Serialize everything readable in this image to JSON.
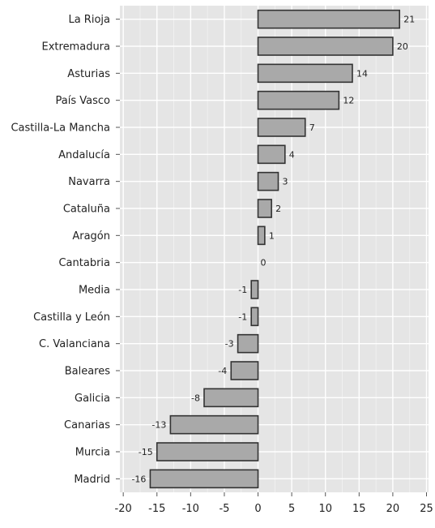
{
  "chart_data": {
    "type": "bar",
    "orientation": "horizontal",
    "categories": [
      "La Rioja",
      "Extremadura",
      "Asturias",
      "País Vasco",
      "Castilla-La Mancha",
      "Andalucía",
      "Navarra",
      "Cataluña",
      "Aragón",
      "Cantabria",
      "Media",
      "Castilla y León",
      "C. Valanciana",
      "Baleares",
      "Galicia",
      "Canarias",
      "Murcia",
      "Madrid"
    ],
    "values": [
      21,
      20,
      14,
      12,
      7,
      4,
      3,
      2,
      1,
      0,
      -1,
      -1,
      -3,
      -4,
      -8,
      -13,
      -15,
      -16
    ],
    "data_labels": [
      "21",
      "20",
      "14",
      "12",
      "7",
      "4",
      "3",
      "2",
      "1",
      "0",
      "-1",
      "-1",
      "-3",
      "-4",
      "-8",
      "-13",
      "-15",
      "-16"
    ],
    "x_ticks": [
      "-20",
      "-15",
      "-10",
      "-5",
      "0",
      "5",
      "10",
      "15",
      "20",
      "25"
    ],
    "x_tick_values": [
      -20,
      -15,
      -10,
      -5,
      0,
      5,
      10,
      15,
      20,
      25
    ],
    "xlim": [
      -20.5,
      25.3
    ],
    "title": "",
    "xlabel": "",
    "ylabel": "",
    "grid": true,
    "legend": "none",
    "colors": {
      "panel_background": "#e5e5e5",
      "bar_fill": "#a9a9a9",
      "bar_stroke": "#333333",
      "grid": "#ffffff"
    }
  }
}
